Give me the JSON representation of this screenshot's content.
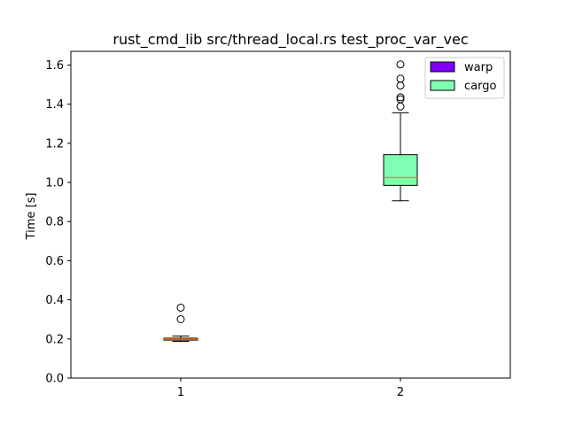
{
  "chart_data": {
    "type": "box",
    "title": "rust_cmd_lib src/thread_local.rs test_proc_var_vec",
    "xlabel": "",
    "ylabel": "Time [s]",
    "ylim": [
      0.0,
      1.67
    ],
    "yticks": [
      "0.0",
      "0.2",
      "0.4",
      "0.6",
      "0.8",
      "1.0",
      "1.2",
      "1.4",
      "1.6"
    ],
    "categories": [
      "1",
      "2"
    ],
    "grid": false,
    "legend_position": "top-right",
    "series": [
      {
        "name": "warp",
        "color": "#8000ff",
        "x": 1,
        "whisker_low": 0.188,
        "q1": 0.194,
        "median": 0.199,
        "q3": 0.204,
        "whisker_high": 0.215,
        "outliers": [
          0.301,
          0.36
        ]
      },
      {
        "name": "cargo",
        "color": "#80ffb4",
        "x": 2,
        "whisker_low": 0.906,
        "q1": 0.985,
        "median": 1.025,
        "q3": 1.142,
        "whisker_high": 1.356,
        "outliers": [
          1.388,
          1.425,
          1.435,
          1.495,
          1.53,
          1.603
        ]
      }
    ],
    "median_color": "#ff7f0e"
  }
}
